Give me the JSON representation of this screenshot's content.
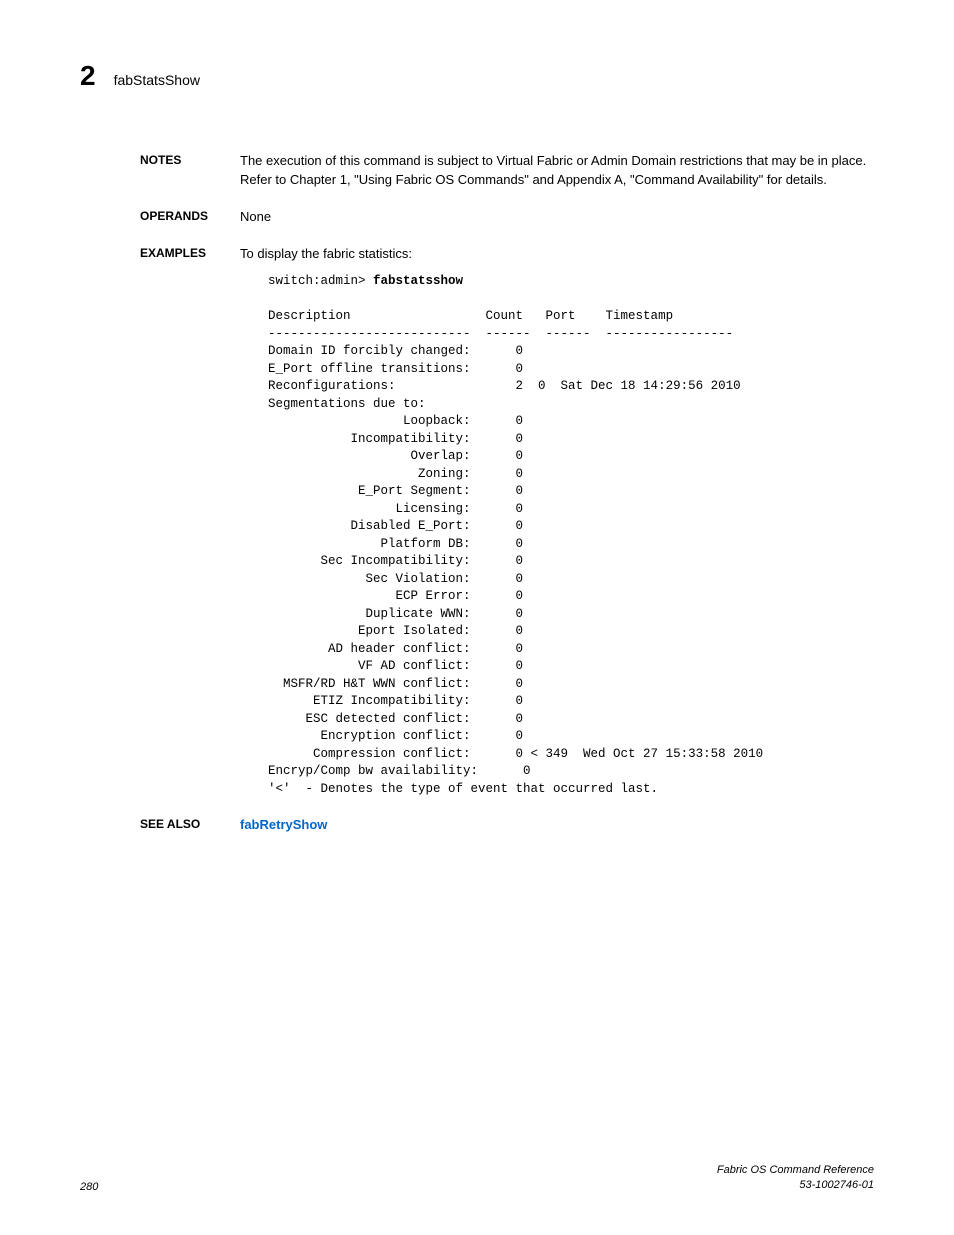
{
  "header": {
    "chapter_num": "2",
    "title": "fabStatsShow"
  },
  "notes": {
    "label": "NOTES",
    "text": "The execution of this command is subject to Virtual Fabric or Admin Domain restrictions that may be in place. Refer to Chapter 1, \"Using Fabric OS Commands\" and Appendix A, \"Command Availability\" for details."
  },
  "operands": {
    "label": "OPERANDS",
    "text": "None"
  },
  "examples": {
    "label": "EXAMPLES",
    "intro": "To display the fabric statistics:",
    "prompt": "switch:admin> ",
    "command": "fabstatsshow",
    "output_lines": [
      "",
      "Description                  Count   Port    Timestamp",
      "---------------------------  ------  ------  -----------------",
      "Domain ID forcibly changed:      0",
      "E_Port offline transitions:      0",
      "Reconfigurations:                2  0  Sat Dec 18 14:29:56 2010",
      "Segmentations due to:",
      "                  Loopback:      0",
      "           Incompatibility:      0",
      "                   Overlap:      0",
      "                    Zoning:      0",
      "            E_Port Segment:      0",
      "                 Licensing:      0",
      "           Disabled E_Port:      0",
      "               Platform DB:      0",
      "       Sec Incompatibility:      0",
      "             Sec Violation:      0",
      "                 ECP Error:      0",
      "             Duplicate WWN:      0",
      "            Eport Isolated:      0",
      "        AD header conflict:      0",
      "            VF AD conflict:      0",
      "  MSFR/RD H&T WWN conflict:      0",
      "      ETIZ Incompatibility:      0",
      "     ESC detected conflict:      0",
      "       Encryption conflict:      0",
      "      Compression conflict:      0 < 349  Wed Oct 27 15:33:58 2010",
      "Encryp/Comp bw availability:      0",
      "'<'  - Denotes the type of event that occurred last."
    ]
  },
  "see_also": {
    "label": "SEE ALSO",
    "link_text": "fabRetryShow"
  },
  "footer": {
    "page_num": "280",
    "doc_title": "Fabric OS Command Reference",
    "doc_id": "53-1002746-01"
  }
}
